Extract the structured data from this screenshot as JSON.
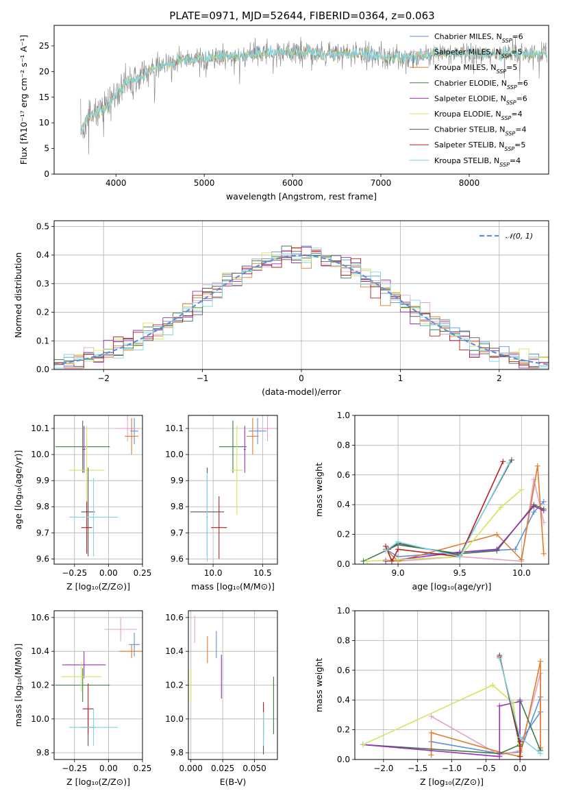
{
  "figure": {
    "title": "PLATE=0971, MJD=52644, FIBERID=0364, z=0.063"
  },
  "colors": {
    "Chabrier MILES": "#5f8fd9",
    "Salpeter MILES": "#e5a2c8",
    "Kroupa MILES": "#e07b2a",
    "Chabrier ELODIE": "#3d7a44",
    "Salpeter ELODIE": "#9a2fb5",
    "Kroupa ELODIE": "#cfe85a",
    "Chabrier STELIB": "#555555",
    "Salpeter STELIB": "#b51f1f",
    "Kroupa STELIB": "#7fd5e2",
    "normal": "#5f8fd9",
    "data": "#8c8c8c"
  },
  "chart_data": [
    {
      "id": "spectrum",
      "type": "line",
      "xlabel": "wavelength [Angstrom, rest frame]",
      "ylabel": "Flux [fλ10⁻¹⁷ erg cm⁻² s⁻¹ A⁻¹]",
      "xlim": [
        3300,
        8900
      ],
      "ylim": [
        0,
        29
      ],
      "xticks": [
        4000,
        5000,
        6000,
        7000,
        8000
      ],
      "yticks": [
        0,
        5,
        10,
        15,
        20,
        25
      ],
      "envelope_x": [
        3600,
        3700,
        3800,
        3900,
        4000,
        4100,
        4200,
        4300,
        4400,
        4500,
        4600,
        4700,
        4800,
        4900,
        5000,
        5200,
        5400,
        5600,
        5800,
        6000,
        6200,
        6400,
        6600,
        6800,
        7000,
        7200,
        7400,
        7600,
        7800,
        8000,
        8200,
        8400,
        8600,
        8800
      ],
      "envelope_y": [
        8.5,
        11,
        12.5,
        13,
        15.5,
        17.5,
        18.5,
        19,
        20.5,
        21,
        21.5,
        22,
        22.5,
        22.5,
        22.5,
        23,
        23,
        23.5,
        23.5,
        24,
        23.5,
        23.5,
        23.5,
        23.5,
        23,
        22.5,
        23,
        23.5,
        23.5,
        23.5,
        23.5,
        23.5,
        23.5,
        23.5
      ],
      "legend": [
        {
          "name": "Chabrier MILES",
          "nssp": "6"
        },
        {
          "name": "Salpeter MILES",
          "nssp": "5"
        },
        {
          "name": "Kroupa MILES",
          "nssp": "5"
        },
        {
          "name": "Chabrier ELODIE",
          "nssp": "6"
        },
        {
          "name": "Salpeter ELODIE",
          "nssp": "6"
        },
        {
          "name": "Kroupa ELODIE",
          "nssp": "4"
        },
        {
          "name": "Chabrier STELIB",
          "nssp": "4"
        },
        {
          "name": "Salpeter STELIB",
          "nssp": "5"
        },
        {
          "name": "Kroupa STELIB",
          "nssp": "4"
        }
      ]
    },
    {
      "id": "residuals",
      "type": "bar",
      "xlabel": "(data-model)/error",
      "ylabel": "Normed distribution",
      "xlim": [
        -2.5,
        2.5
      ],
      "ylim": [
        0,
        0.52
      ],
      "xticks": [
        -2,
        -1,
        0,
        1,
        2
      ],
      "yticks": [
        0.0,
        0.1,
        0.2,
        0.3,
        0.4,
        0.5
      ],
      "bin_width": 0.1,
      "legend": [
        "𝒩(0, 1)"
      ]
    },
    {
      "id": "age-vs-Z",
      "type": "scatter",
      "xlabel": "Z [log₁₀(Z/Z⊙)]",
      "ylabel": "age  [log₁₀(age/yr)]",
      "xlim": [
        -0.4,
        0.25
      ],
      "ylim": [
        9.58,
        10.15
      ],
      "xticks": [
        -0.25,
        0.0,
        0.25
      ],
      "yticks": [
        9.6,
        9.7,
        9.8,
        9.9,
        10.0,
        10.1
      ],
      "points": [
        {
          "s": "Chabrier MILES",
          "x": 0.19,
          "y": 10.09,
          "dx": 0.03,
          "dy": 0.05
        },
        {
          "s": "Salpeter MILES",
          "x": 0.14,
          "y": 10.1,
          "dx": 0.09,
          "dy": 0.05
        },
        {
          "s": "Kroupa MILES",
          "x": 0.17,
          "y": 10.07,
          "dx": 0.05,
          "dy": 0.07
        },
        {
          "s": "Chabrier ELODIE",
          "x": -0.19,
          "y": 10.03,
          "dx": 0.2,
          "dy": 0.1
        },
        {
          "s": "Salpeter ELODIE",
          "x": -0.18,
          "y": 10.02,
          "dx": 0.01,
          "dy": 0.09
        },
        {
          "s": "Kroupa ELODIE",
          "x": -0.16,
          "y": 9.94,
          "dx": 0.13,
          "dy": 0.17
        },
        {
          "s": "Chabrier STELIB",
          "x": -0.15,
          "y": 9.78,
          "dx": 0.05,
          "dy": 0.17
        },
        {
          "s": "Salpeter STELIB",
          "x": -0.16,
          "y": 9.72,
          "dx": 0.04,
          "dy": 0.1
        },
        {
          "s": "Kroupa STELIB",
          "x": -0.11,
          "y": 9.76,
          "dx": 0.18,
          "dy": 0.15
        }
      ]
    },
    {
      "id": "age-vs-mass",
      "type": "scatter",
      "xlabel": "mass [log₁₀(M/M⊙)]",
      "ylabel": "",
      "xlim": [
        9.75,
        10.65
      ],
      "ylim": [
        9.58,
        10.15
      ],
      "xticks": [
        10.0,
        10.5
      ],
      "yticks": [
        9.6,
        9.7,
        9.8,
        9.9,
        10.0,
        10.1
      ],
      "points": [
        {
          "s": "Chabrier MILES",
          "x": 10.45,
          "y": 10.09,
          "dx": 0.09,
          "dy": 0.05
        },
        {
          "s": "Salpeter MILES",
          "x": 10.55,
          "y": 10.1,
          "dx": 0.1,
          "dy": 0.05
        },
        {
          "s": "Kroupa MILES",
          "x": 10.4,
          "y": 10.07,
          "dx": 0.06,
          "dy": 0.07
        },
        {
          "s": "Chabrier ELODIE",
          "x": 10.2,
          "y": 10.03,
          "dx": 0.14,
          "dy": 0.1
        },
        {
          "s": "Salpeter ELODIE",
          "x": 10.32,
          "y": 10.02,
          "dx": 0.01,
          "dy": 0.09
        },
        {
          "s": "Kroupa ELODIE",
          "x": 10.24,
          "y": 9.94,
          "dx": 0.06,
          "dy": 0.17
        },
        {
          "s": "Chabrier STELIB",
          "x": 9.94,
          "y": 9.78,
          "dx": 0.17,
          "dy": 0.17
        },
        {
          "s": "Salpeter STELIB",
          "x": 10.06,
          "y": 9.72,
          "dx": 0.08,
          "dy": 0.12
        },
        {
          "s": "Kroupa STELIB",
          "x": 9.94,
          "y": 9.76,
          "dx": 0.01,
          "dy": 0.17
        }
      ]
    },
    {
      "id": "weight-vs-age",
      "type": "line",
      "xlabel": "age  [log₁₀(age/yr)]",
      "ylabel": "mass weight",
      "xlim": [
        8.65,
        10.22
      ],
      "ylim": [
        0,
        1.0
      ],
      "xticks": [
        9.0,
        9.5,
        10.0
      ],
      "yticks": [
        0.0,
        0.2,
        0.4,
        0.6,
        0.8,
        1.0
      ],
      "series": [
        {
          "s": "Chabrier MILES",
          "x": [
            8.9,
            9.0,
            9.5,
            9.95,
            10.1,
            10.18
          ],
          "y": [
            0.1,
            0.05,
            0.08,
            0.1,
            0.35,
            0.42
          ]
        },
        {
          "s": "Salpeter MILES",
          "x": [
            8.9,
            9.0,
            9.5,
            10.0,
            10.1,
            10.18
          ],
          "y": [
            0.03,
            0.02,
            0.05,
            0.02,
            0.57,
            0.28
          ]
        },
        {
          "s": "Kroupa MILES",
          "x": [
            8.9,
            9.0,
            9.8,
            10.0,
            10.13,
            10.18
          ],
          "y": [
            0.1,
            0.02,
            0.2,
            0.03,
            0.66,
            0.07
          ]
        },
        {
          "s": "Chabrier ELODIE",
          "x": [
            8.72,
            9.0,
            9.5,
            9.8,
            10.1,
            10.18
          ],
          "y": [
            0.02,
            0.13,
            0.07,
            0.09,
            0.4,
            0.37
          ]
        },
        {
          "s": "Salpeter ELODIE",
          "x": [
            8.9,
            9.0,
            9.5,
            9.8,
            10.1,
            10.18
          ],
          "y": [
            0.02,
            0.03,
            0.08,
            0.1,
            0.39,
            0.36
          ]
        },
        {
          "s": "Kroupa ELODIE",
          "x": [
            8.75,
            9.0,
            9.5,
            9.83,
            10.0
          ],
          "y": [
            0.02,
            0.03,
            0.05,
            0.38,
            0.5
          ]
        },
        {
          "s": "Chabrier STELIB",
          "x": [
            8.92,
            9.0,
            9.5,
            9.92
          ],
          "y": [
            0.1,
            0.14,
            0.06,
            0.7
          ]
        },
        {
          "s": "Salpeter STELIB",
          "x": [
            8.9,
            8.95,
            9.0,
            9.5,
            9.85
          ],
          "y": [
            0.12,
            0.02,
            0.1,
            0.05,
            0.69
          ]
        },
        {
          "s": "Kroupa STELIB",
          "x": [
            8.9,
            9.0,
            9.5,
            9.9
          ],
          "y": [
            0.09,
            0.15,
            0.05,
            0.68
          ]
        }
      ]
    },
    {
      "id": "mass-vs-Z",
      "type": "scatter",
      "xlabel": "Z [log₁₀(Z/Z⊙)]",
      "ylabel": "mass [log₁₀(M/M⊙)]",
      "xlim": [
        -0.4,
        0.25
      ],
      "ylim": [
        9.76,
        10.64
      ],
      "xticks": [
        -0.25,
        0.0,
        0.25
      ],
      "yticks": [
        9.8,
        10.0,
        10.2,
        10.4,
        10.6
      ],
      "points": [
        {
          "s": "Chabrier MILES",
          "x": 0.19,
          "y": 10.44,
          "dx": 0.04,
          "dy": 0.07
        },
        {
          "s": "Salpeter MILES",
          "x": 0.09,
          "y": 10.53,
          "dx": 0.12,
          "dy": 0.07
        },
        {
          "s": "Kroupa MILES",
          "x": 0.17,
          "y": 10.4,
          "dx": 0.09,
          "dy": 0.04
        },
        {
          "s": "Chabrier ELODIE",
          "x": -0.19,
          "y": 10.2,
          "dx": 0.2,
          "dy": 0.1
        },
        {
          "s": "Salpeter ELODIE",
          "x": -0.18,
          "y": 10.32,
          "dx": 0.16,
          "dy": 0.08
        },
        {
          "s": "Kroupa ELODIE",
          "x": -0.2,
          "y": 10.25,
          "dx": 0.15,
          "dy": 0.09
        },
        {
          "s": "Chabrier STELIB",
          "x": -0.15,
          "y": 9.95,
          "dx": 0.05,
          "dy": 0.11
        },
        {
          "s": "Salpeter STELIB",
          "x": -0.15,
          "y": 10.06,
          "dx": 0.04,
          "dy": 0.15
        },
        {
          "s": "Kroupa STELIB",
          "x": -0.11,
          "y": 9.95,
          "dx": 0.18,
          "dy": 0.11
        }
      ]
    },
    {
      "id": "mass-vs-EBV",
      "type": "scatter",
      "xlabel": "E(B-V)",
      "ylabel": "",
      "xlim": [
        -0.002,
        0.068
      ],
      "ylim": [
        9.76,
        10.64
      ],
      "xticks": [
        0.0,
        0.025,
        0.05
      ],
      "xticklabels": [
        "0.000",
        "0.025",
        "0.050"
      ],
      "yticks": [
        9.8,
        10.0,
        10.2,
        10.4,
        10.6
      ],
      "points": [
        {
          "s": "Chabrier MILES",
          "x": 0.02,
          "y": 10.44,
          "dx": 0,
          "dy": 0.08
        },
        {
          "s": "Salpeter MILES",
          "x": 0.003,
          "y": 10.53,
          "dx": 0,
          "dy": 0.08
        },
        {
          "s": "Kroupa MILES",
          "x": 0.013,
          "y": 10.41,
          "dx": 0,
          "dy": 0.08
        },
        {
          "s": "Chabrier ELODIE",
          "x": 0.065,
          "y": 10.08,
          "dx": 0,
          "dy": 0.17
        },
        {
          "s": "Salpeter ELODIE",
          "x": 0.024,
          "y": 10.25,
          "dx": 0,
          "dy": 0.13
        },
        {
          "s": "Kroupa ELODIE",
          "x": 0.0,
          "y": 10.2,
          "dx": 0,
          "dy": 0.1
        },
        {
          "s": "Chabrier STELIB",
          "x": 0.057,
          "y": 9.94,
          "dx": 0,
          "dy": 0.15
        },
        {
          "s": "Salpeter STELIB",
          "x": 0.057,
          "y": 10.0,
          "dx": 0,
          "dy": 0.1
        },
        {
          "s": "Kroupa STELIB",
          "x": 0.057,
          "y": 9.94,
          "dx": 0,
          "dy": 0.1
        }
      ]
    },
    {
      "id": "weight-vs-Z",
      "type": "line",
      "xlabel": "Z [log₁₀(Z/Z⊙)]",
      "ylabel": "mass weight",
      "xlim": [
        -2.42,
        0.42
      ],
      "ylim": [
        0,
        1.0
      ],
      "xticks": [
        -2.0,
        -1.5,
        -1.0,
        -0.5,
        0.0
      ],
      "yticks": [
        0.0,
        0.2,
        0.4,
        0.6,
        0.8,
        1.0
      ],
      "series": [
        {
          "s": "Chabrier MILES",
          "x": [
            -1.3,
            -0.3,
            0.0,
            0.3,
            0.3,
            0.0
          ],
          "y": [
            0.12,
            0.04,
            0.05,
            0.42,
            0.32,
            0.12
          ]
        },
        {
          "s": "Salpeter MILES",
          "x": [
            -1.3,
            -0.3,
            0.0,
            0.3,
            0.3
          ],
          "y": [
            0.29,
            0.03,
            0.06,
            0.58,
            0.07
          ]
        },
        {
          "s": "Kroupa MILES",
          "x": [
            -1.3,
            -1.3,
            -0.3,
            0.0,
            0.3,
            0.3
          ],
          "y": [
            0.03,
            0.18,
            0.05,
            0.02,
            0.66,
            0.08
          ]
        },
        {
          "s": "Chabrier ELODIE",
          "x": [
            -2.3,
            -0.3,
            0.0,
            0.0,
            0.3
          ],
          "y": [
            0.1,
            0.04,
            0.1,
            0.4,
            0.06
          ]
        },
        {
          "s": "Salpeter ELODIE",
          "x": [
            -2.3,
            -0.3,
            -0.3,
            0.0,
            0.0
          ],
          "y": [
            0.1,
            0.02,
            0.36,
            0.39,
            0.0
          ]
        },
        {
          "s": "Kroupa ELODIE",
          "x": [
            -2.3,
            -0.4,
            -0.1,
            0.0
          ],
          "y": [
            0.1,
            0.5,
            0.38,
            0.03
          ]
        },
        {
          "s": "Chabrier STELIB",
          "x": [
            -0.3,
            0.0
          ],
          "y": [
            0.7,
            0.09
          ]
        },
        {
          "s": "Salpeter STELIB",
          "x": [
            -0.3,
            0.0,
            0.0
          ],
          "y": [
            0.69,
            0.12,
            0.02
          ]
        },
        {
          "s": "Kroupa STELIB",
          "x": [
            -0.3,
            0.0,
            0.3
          ],
          "y": [
            0.68,
            0.15,
            0.04
          ]
        }
      ]
    }
  ]
}
